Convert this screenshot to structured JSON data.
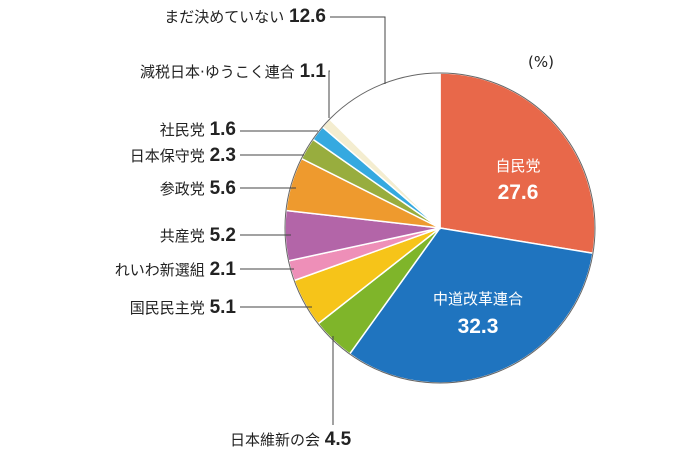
{
  "chart_data": {
    "type": "pie",
    "unit": "(%)",
    "slices": [
      {
        "label": "自民党",
        "value": 27.6,
        "color": "#E8684A",
        "inside": true
      },
      {
        "label": "中道改革連合",
        "value": 32.3,
        "color": "#1F74BF",
        "inside": true
      },
      {
        "label": "日本維新の会",
        "value": 4.5,
        "color": "#7FB52A",
        "inside": false
      },
      {
        "label": "国民民主党",
        "value": 5.1,
        "color": "#F6C419",
        "inside": false
      },
      {
        "label": "れいわ新選組",
        "value": 2.1,
        "color": "#EE8FB8",
        "inside": false
      },
      {
        "label": "共産党",
        "value": 5.2,
        "color": "#B365A8",
        "inside": false
      },
      {
        "label": "参政党",
        "value": 5.6,
        "color": "#EE9A2E",
        "inside": false
      },
      {
        "label": "日本保守党",
        "value": 2.3,
        "color": "#98AD3E",
        "inside": false
      },
      {
        "label": "社民党",
        "value": 1.6,
        "color": "#35A9E0",
        "inside": false
      },
      {
        "label": "減税日本·ゆうこく連合",
        "value": 1.1,
        "color": "#F4EDD0",
        "inside": false
      },
      {
        "label": "まだ決めていない",
        "value": 12.6,
        "color": "#FFFFFF",
        "inside": false
      }
    ]
  }
}
